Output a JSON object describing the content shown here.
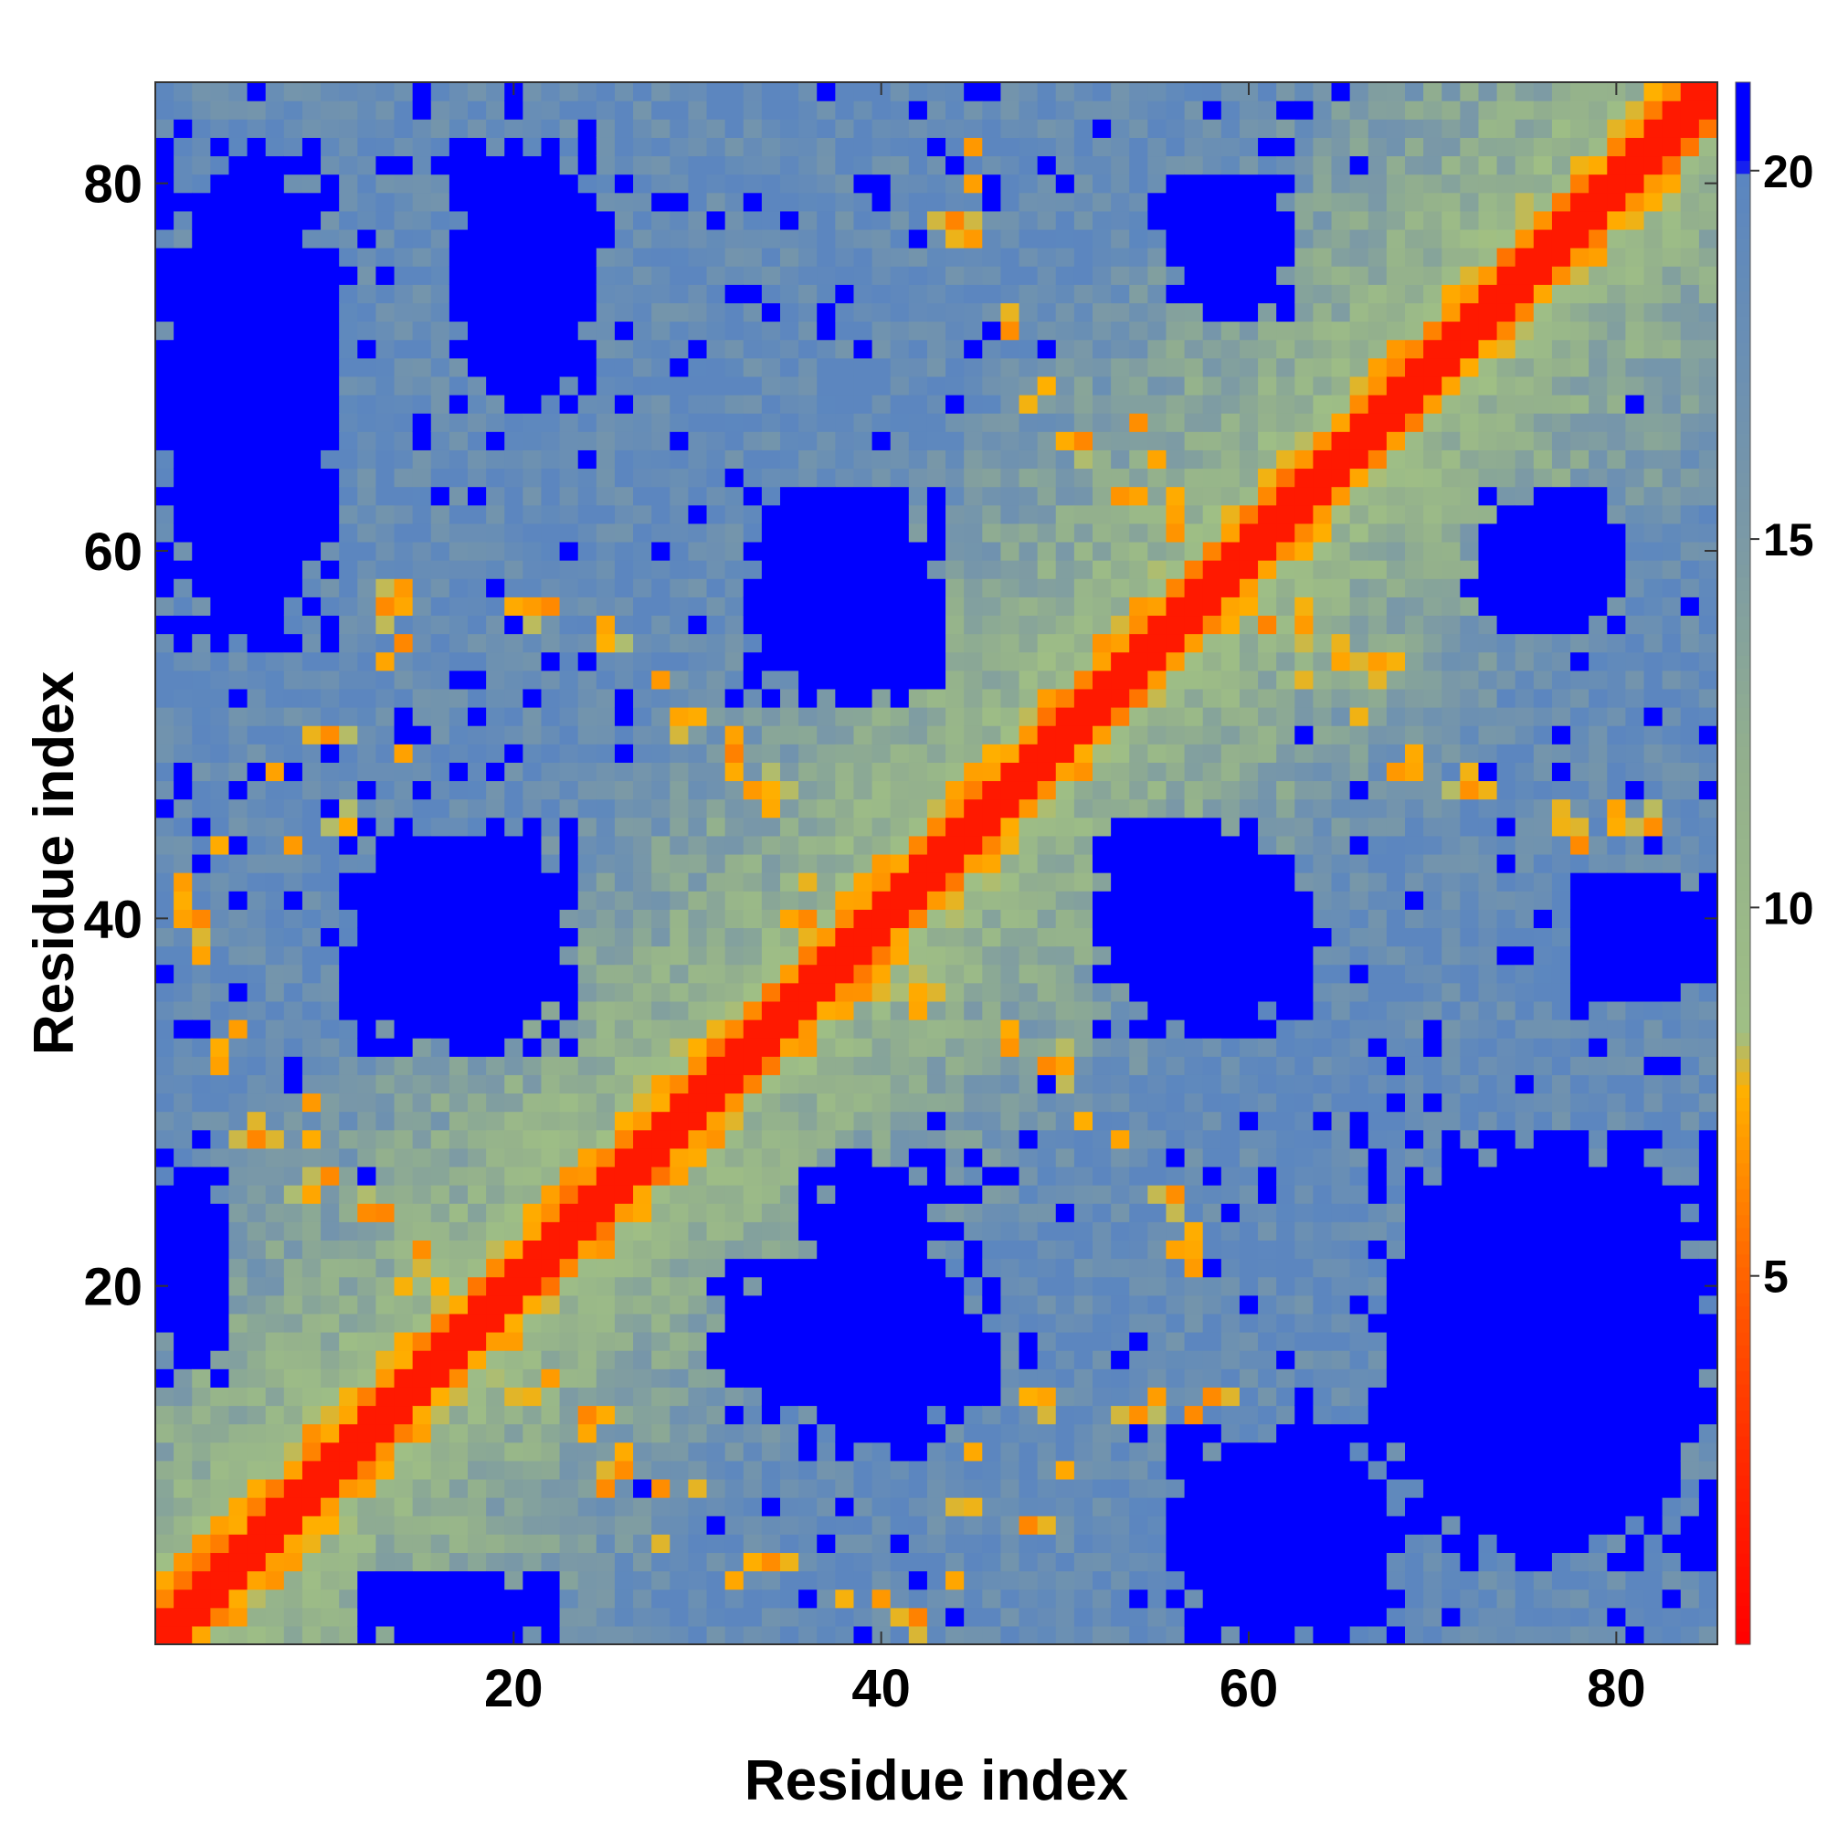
{
  "chart_data": {
    "type": "heatmap",
    "title": "",
    "xlabel": "Residue index",
    "ylabel": "Residue index",
    "x_range": [
      1,
      85
    ],
    "y_range": [
      1,
      85
    ],
    "x_ticks": [
      20,
      40,
      60,
      80
    ],
    "y_ticks": [
      20,
      40,
      60,
      80
    ],
    "colorbar": {
      "ticks": [
        5,
        10,
        15,
        20
      ],
      "range": [
        0,
        21.2
      ],
      "stops": [
        {
          "value": 0,
          "color": "#ff0000"
        },
        {
          "value": 2.5,
          "color": "#ff2a00"
        },
        {
          "value": 4.5,
          "color": "#ff5500"
        },
        {
          "value": 6,
          "color": "#ff8000"
        },
        {
          "value": 7.5,
          "color": "#ffb000"
        },
        {
          "value": 8.3,
          "color": "#9fbf85"
        },
        {
          "value": 12,
          "color": "#93b08d"
        },
        {
          "value": 15,
          "color": "#7b99a6"
        },
        {
          "value": 19.9,
          "color": "#5b86c0"
        },
        {
          "value": 20.1,
          "color": "#0000ff"
        },
        {
          "value": 21.2,
          "color": "#0000ff"
        }
      ]
    },
    "blue_regions": [
      {
        "x": [
          17,
          24
        ],
        "y": [
          68,
          82
        ],
        "value": 21
      },
      {
        "x": [
          1,
          10
        ],
        "y": [
          55,
          82
        ],
        "value": 21
      },
      {
        "x": [
          11,
          23
        ],
        "y": [
          33,
          45
        ],
        "value": 21
      },
      {
        "x": [
          33,
          43
        ],
        "y": [
          52,
          63
        ],
        "value": 21
      },
      {
        "x": [
          36,
          43
        ],
        "y": [
          11,
          27
        ],
        "value": 21
      },
      {
        "x": [
          31,
          46
        ],
        "y": [
          13,
          21
        ],
        "value": 21
      },
      {
        "x": [
          56,
          62
        ],
        "y": [
          73,
          80
        ],
        "value": 21
      },
      {
        "x": [
          52,
          63
        ],
        "y": [
          34,
          45
        ],
        "value": 21
      },
      {
        "x": [
          73,
          80
        ],
        "y": [
          56,
          63
        ],
        "value": 21
      },
      {
        "x": [
          78,
          85
        ],
        "y": [
          36,
          42
        ],
        "value": 21
      },
      {
        "x": [
          67,
          85
        ],
        "y": [
          5,
          28
        ],
        "value": 21
      },
      {
        "x": [
          56,
          68
        ],
        "y": [
          1,
          12
        ],
        "value": 21
      },
      {
        "x": [
          1,
          4
        ],
        "y": [
          15,
          27
        ],
        "value": 21
      },
      {
        "x": [
          11,
          22
        ],
        "y": [
          1,
          4
        ],
        "value": 21
      }
    ],
    "orange_contacts": [
      [
        44,
        78
      ],
      [
        47,
        73
      ],
      [
        49,
        69
      ],
      [
        51,
        66
      ],
      [
        53,
        63
      ],
      [
        56,
        61
      ],
      [
        63,
        56
      ],
      [
        65,
        55
      ],
      [
        67,
        54
      ],
      [
        68,
        48
      ],
      [
        72,
        47
      ],
      [
        77,
        45
      ],
      [
        80,
        45
      ],
      [
        82,
        45
      ],
      [
        21,
        57
      ],
      [
        25,
        55
      ],
      [
        29,
        51
      ],
      [
        32,
        49
      ],
      [
        34,
        47
      ],
      [
        36,
        40
      ],
      [
        39,
        37
      ],
      [
        42,
        36
      ],
      [
        50,
        32
      ],
      [
        47,
        33
      ],
      [
        53,
        28
      ],
      [
        56,
        25
      ],
      [
        57,
        22
      ],
      [
        49,
        14
      ],
      [
        54,
        13
      ],
      [
        58,
        14
      ],
      [
        30,
        9
      ],
      [
        34,
        5
      ],
      [
        38,
        3
      ],
      [
        42,
        2
      ],
      [
        44,
        4
      ],
      [
        48,
        7
      ],
      [
        44,
        8
      ],
      [
        2,
        42
      ],
      [
        3,
        40
      ],
      [
        4,
        32
      ],
      [
        6,
        28
      ],
      [
        9,
        25
      ],
      [
        12,
        24
      ],
      [
        15,
        22
      ],
      [
        17,
        20
      ],
      [
        20,
        14
      ],
      [
        24,
        13
      ],
      [
        26,
        10
      ],
      [
        28,
        9
      ],
      [
        14,
        55
      ],
      [
        10,
        50
      ],
      [
        11,
        45
      ],
      [
        13,
        57
      ]
    ]
  }
}
